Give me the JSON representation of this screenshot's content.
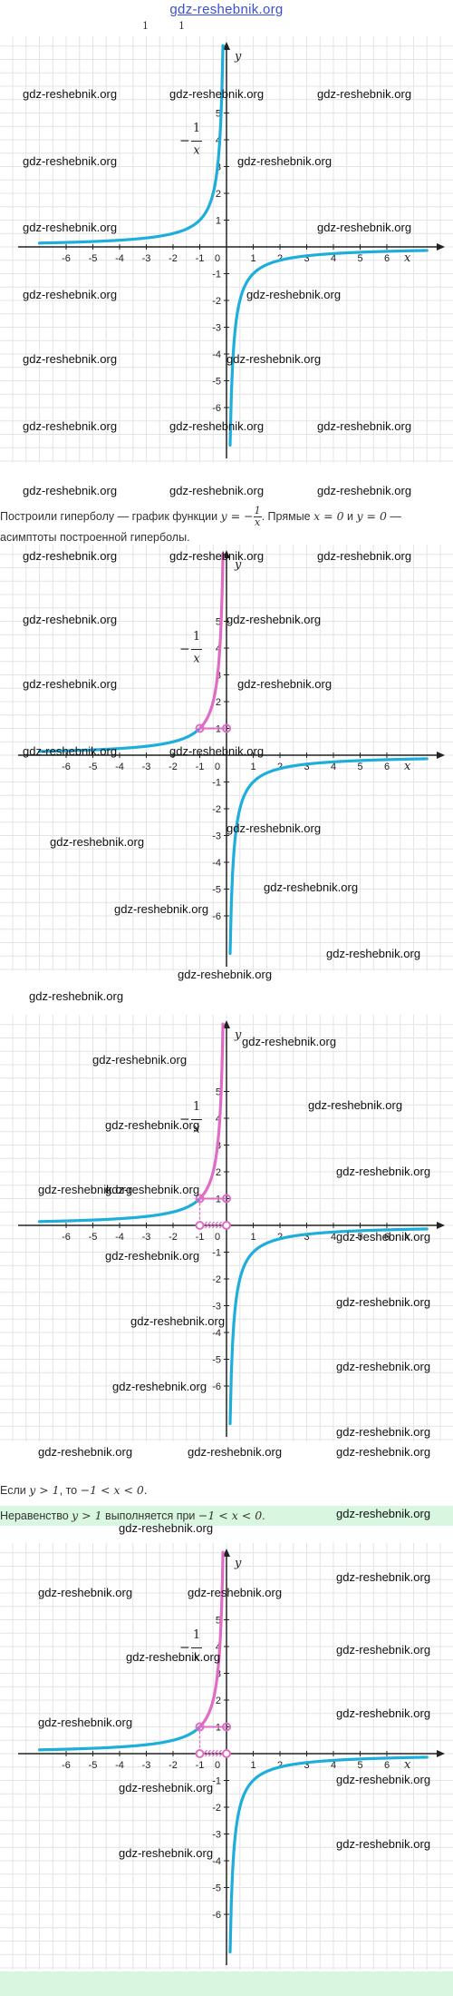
{
  "header": {
    "site_link": "gdz-reshebnik.org",
    "top_fraction_a": "1",
    "top_fraction_b": "1"
  },
  "graph": {
    "x_axis_letter": "x",
    "y_axis_letter": "y",
    "x_ticks": [
      "-6",
      "-5",
      "-4",
      "-3",
      "-2",
      "-1",
      "0",
      "1",
      "2",
      "3",
      "4",
      "5",
      "6"
    ],
    "y_ticks": [
      "5",
      "4",
      "3",
      "2",
      "1",
      "-1",
      "-2",
      "-3",
      "-4",
      "-5",
      "-6"
    ],
    "function_label_sign": "−",
    "function_label_num": "1",
    "function_label_den": "x",
    "curve_color": "#1eaedc",
    "highlight_color": "#e06cc6"
  },
  "text": {
    "line1_a": "Построили гиперболу — график функции ",
    "line1_b": "y = −",
    "line1_frac_num": "1",
    "line1_frac_den": "x",
    "line1_c": ". Прямые ",
    "line1_d": "x = 0",
    "line1_e": " и ",
    "line1_f": "y = 0",
    "line1_g": " —",
    "line2": "асимптоты построенной гиперболы.",
    "line3_a": "Если ",
    "line3_b": "y > 1",
    "line3_c": ", то ",
    "line3_d": "−1 < x < 0",
    "line3_e": ".",
    "line4_a": "Неравенство ",
    "line4_b": "y > 1",
    "line4_c": " выполняется при ",
    "line4_d": "−1 < x < 0",
    "line4_e": "."
  },
  "watermark": "gdz-reshebnik.org"
}
